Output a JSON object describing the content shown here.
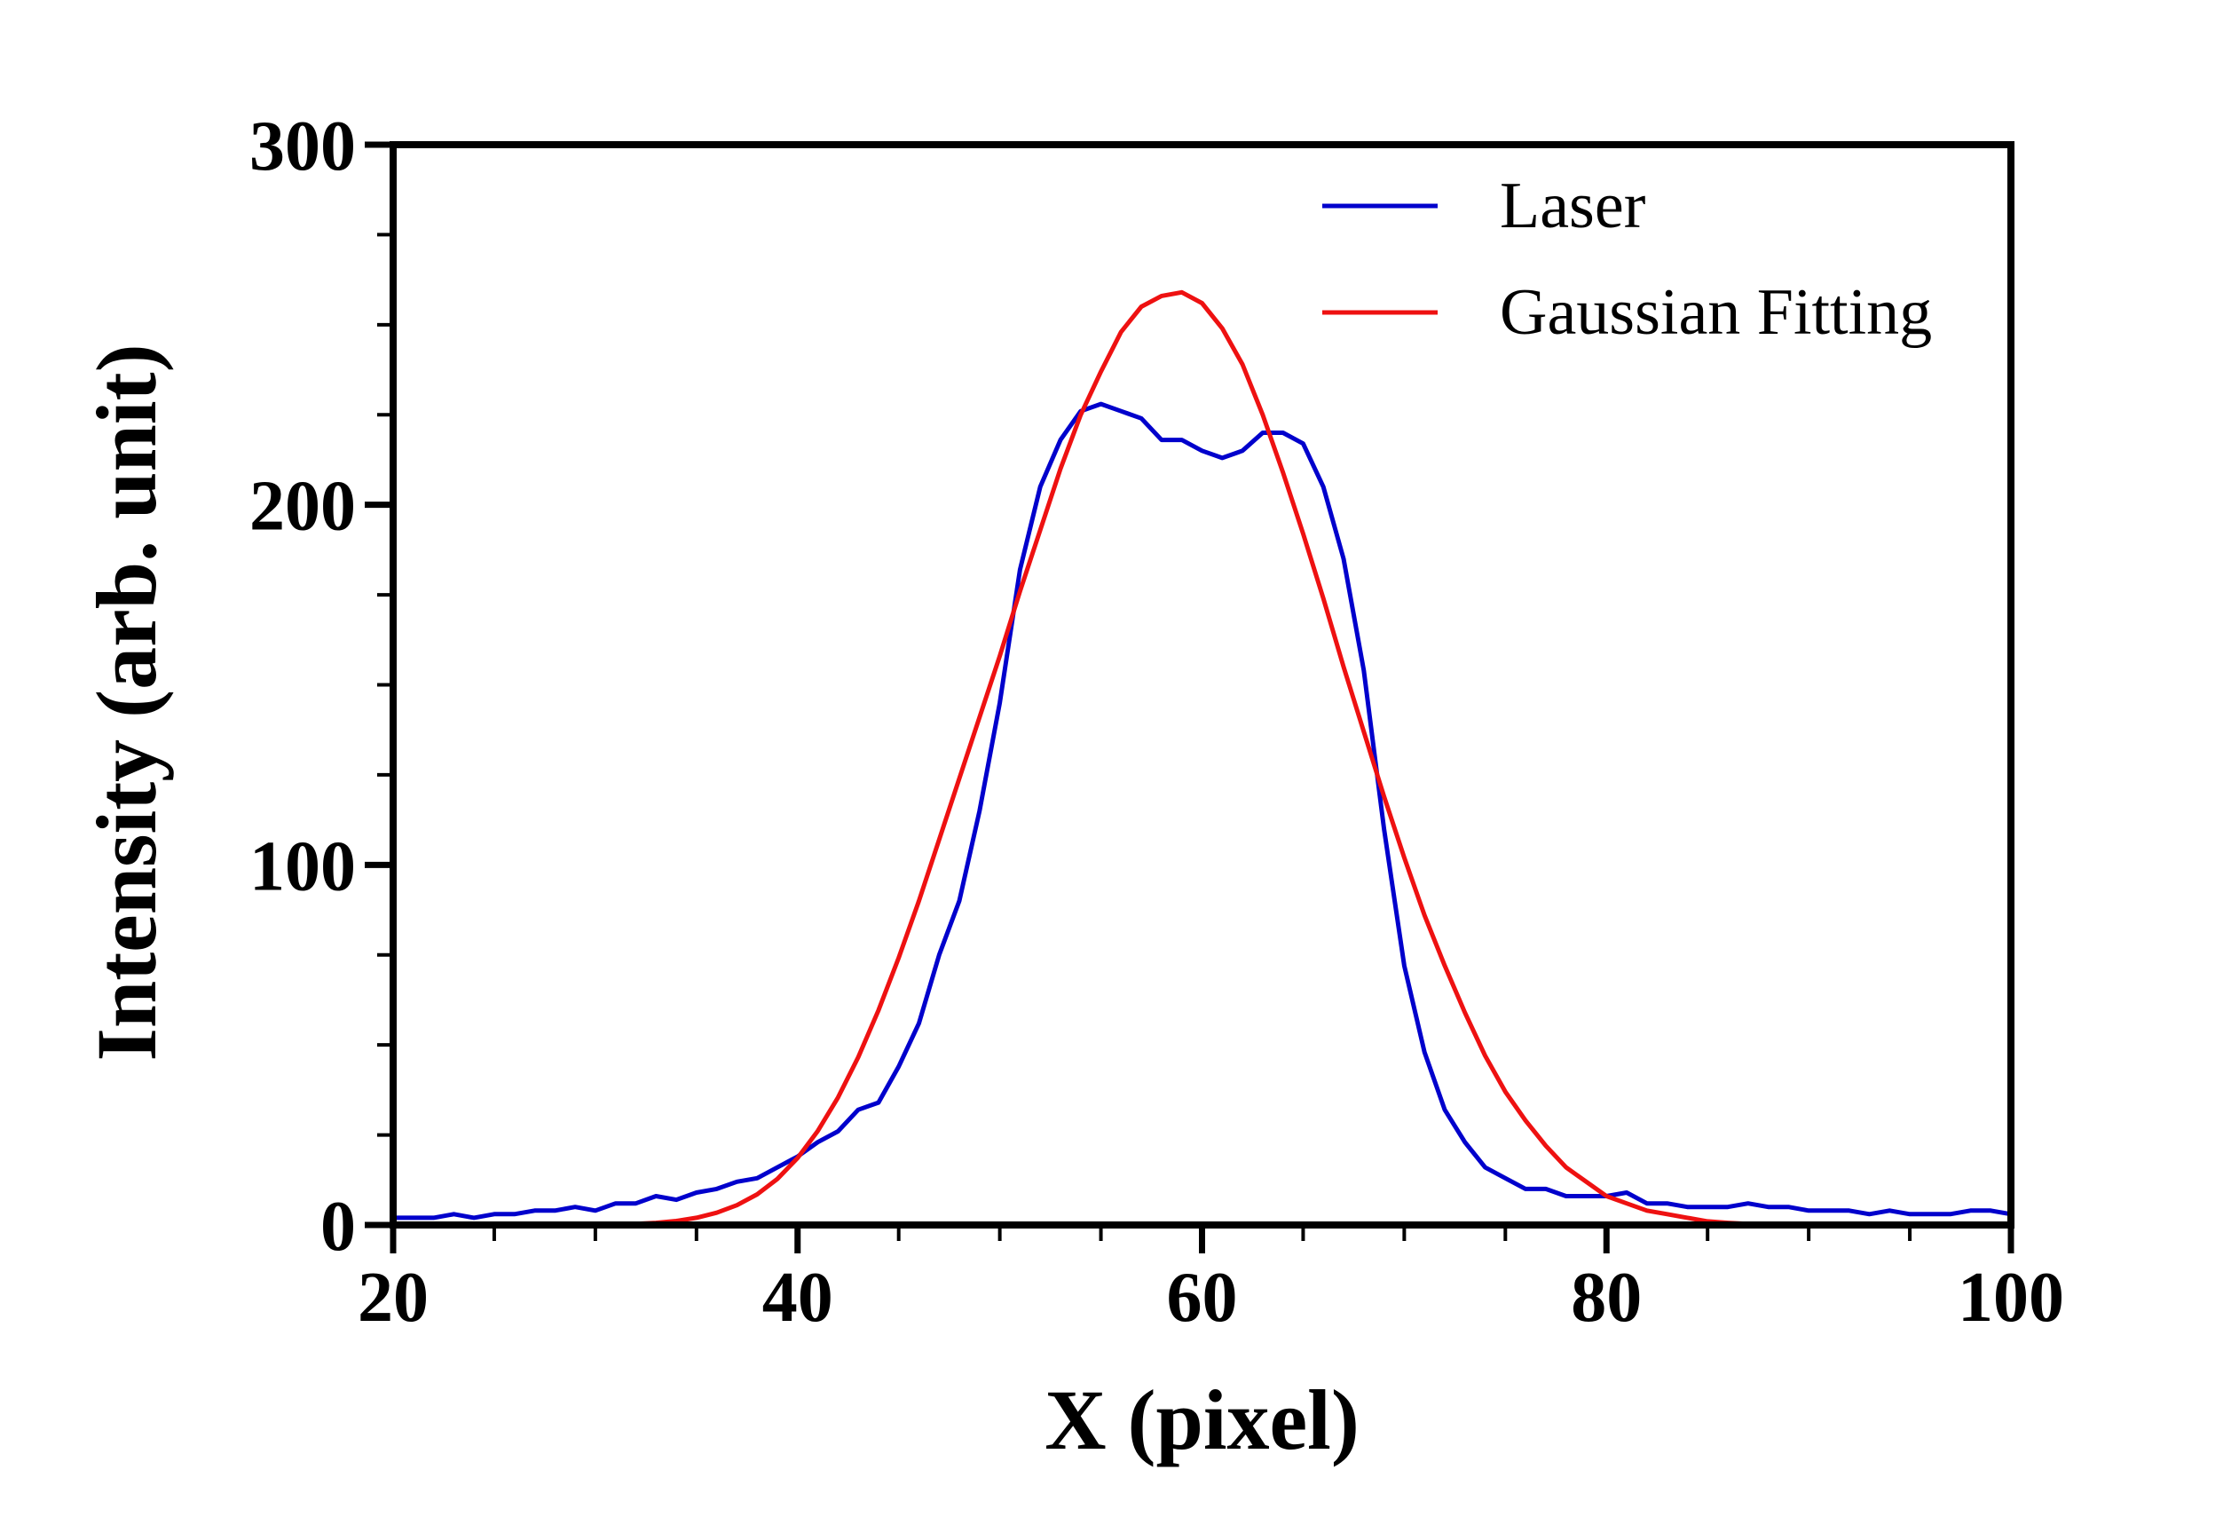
{
  "chart_data": {
    "type": "line",
    "title": "",
    "xlabel": "X (pixel)",
    "ylabel": "Intensity (arb. unit)",
    "xlim": [
      20,
      100
    ],
    "ylim": [
      0,
      300
    ],
    "x_ticks": [
      {
        "value": 20,
        "label": "20"
      },
      {
        "value": 40,
        "label": "40"
      },
      {
        "value": 60,
        "label": "60"
      },
      {
        "value": 80,
        "label": "80"
      },
      {
        "value": 100,
        "label": "100"
      }
    ],
    "y_ticks": [
      {
        "value": 0,
        "label": "0"
      },
      {
        "value": 100,
        "label": "100"
      },
      {
        "value": 200,
        "label": "200"
      },
      {
        "value": 300,
        "label": "300"
      }
    ],
    "grid": false,
    "legend_position": "top-right",
    "series": [
      {
        "name": "Laser",
        "color": "#0000cc",
        "x": [
          20,
          21,
          22,
          23,
          24,
          25,
          26,
          27,
          28,
          29,
          30,
          31,
          32,
          33,
          34,
          35,
          36,
          37,
          38,
          39,
          40,
          41,
          42,
          43,
          44,
          45,
          46,
          47,
          48,
          49,
          50,
          51,
          52,
          53,
          54,
          55,
          56,
          57,
          58,
          59,
          60,
          61,
          62,
          63,
          64,
          65,
          66,
          67,
          68,
          69,
          70,
          71,
          72,
          73,
          74,
          75,
          76,
          77,
          78,
          79,
          80,
          81,
          82,
          83,
          84,
          85,
          86,
          87,
          88,
          89,
          90,
          91,
          92,
          93,
          94,
          95,
          96,
          97,
          98,
          99,
          100
        ],
        "y": [
          2,
          2,
          2,
          3,
          2,
          3,
          3,
          4,
          4,
          5,
          4,
          6,
          6,
          8,
          7,
          9,
          10,
          12,
          13,
          16,
          19,
          23,
          26,
          32,
          34,
          44,
          56,
          75,
          90,
          115,
          145,
          182,
          205,
          218,
          226,
          228,
          226,
          224,
          218,
          218,
          215,
          213,
          215,
          220,
          220,
          217,
          205,
          185,
          154,
          110,
          72,
          48,
          32,
          23,
          16,
          13,
          10,
          10,
          8,
          8,
          8,
          9,
          6,
          6,
          5,
          5,
          5,
          6,
          5,
          5,
          4,
          4,
          4,
          3,
          4,
          3,
          3,
          3,
          4,
          4,
          3
        ]
      },
      {
        "name": "Gaussian Fitting",
        "color": "#ee1111",
        "x": [
          20,
          22,
          24,
          26,
          28,
          30,
          32,
          33,
          34,
          35,
          36,
          37,
          38,
          39,
          40,
          41,
          42,
          43,
          44,
          45,
          46,
          47,
          48,
          49,
          50,
          51,
          52,
          53,
          54,
          55,
          56,
          57,
          58,
          59,
          60,
          61,
          62,
          63,
          64,
          65,
          66,
          67,
          68,
          69,
          70,
          71,
          72,
          73,
          74,
          75,
          76,
          77,
          78,
          79,
          80,
          81,
          82,
          83,
          84,
          85,
          86,
          88,
          90,
          92,
          94,
          96,
          98,
          100
        ],
        "y": [
          0,
          0,
          0,
          0,
          0,
          0,
          0.3,
          0.6,
          1.1,
          2,
          3.4,
          5.5,
          8.5,
          12.8,
          18.6,
          26.1,
          35.4,
          46.6,
          59.6,
          74.2,
          90,
          107,
          124,
          141,
          158,
          176,
          193,
          210,
          225,
          237,
          248,
          255,
          258,
          259,
          256,
          249,
          239,
          225,
          209,
          192,
          174,
          155,
          137,
          119,
          102,
          86,
          72,
          59,
          47,
          37,
          29,
          22,
          16,
          12,
          8,
          6,
          4,
          3,
          2,
          1,
          0.6,
          0,
          0,
          0,
          0,
          0,
          0,
          0
        ]
      }
    ]
  }
}
